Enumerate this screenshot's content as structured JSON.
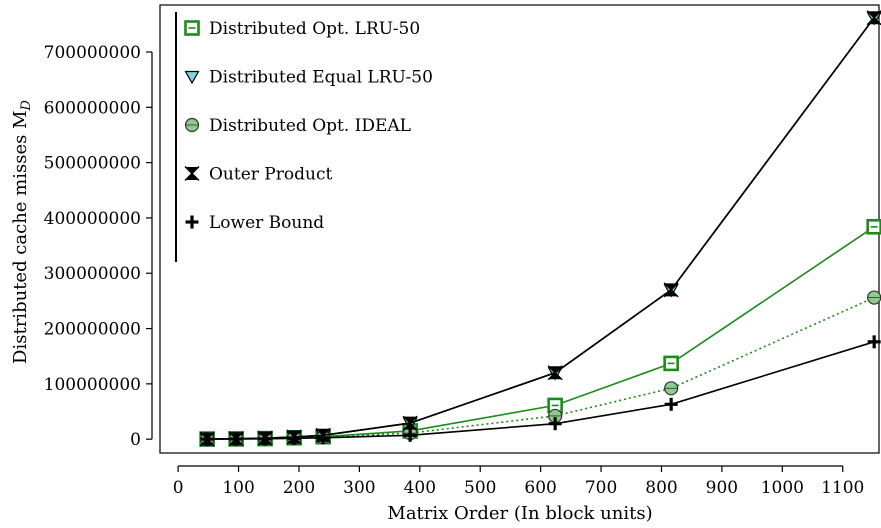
{
  "chart_data": {
    "type": "line",
    "xlabel": "Matrix Order (In block units)",
    "ylabel": "Distributed cache misses M",
    "ylabel_subscript": "D",
    "xlim": [
      -30,
      1160
    ],
    "ylim": [
      -25000000,
      785000000
    ],
    "xticks": [
      0,
      100,
      200,
      300,
      400,
      500,
      600,
      700,
      800,
      900,
      1000,
      1100
    ],
    "yticks": [
      0,
      100000000,
      200000000,
      300000000,
      400000000,
      500000000,
      600000000,
      700000000
    ],
    "x": [
      48,
      96,
      144,
      192,
      240,
      384,
      624,
      816,
      1152
    ],
    "legend_position": "top-left",
    "series": [
      {
        "name": "Distributed Opt. LRU-50",
        "color": "#1a8c1a",
        "marker": "square",
        "dash": "solid",
        "values": [
          200000,
          500000,
          1000000,
          2500000,
          4500000,
          15000000,
          61000000,
          137000000,
          384000000
        ]
      },
      {
        "name": "Distributed Equal LRU-50",
        "color": "#000000",
        "marker": "triangle-down",
        "dash": "solid",
        "values": [
          300000,
          800000,
          1800000,
          4000000,
          7000000,
          29000000,
          120000000,
          270000000,
          762000000
        ]
      },
      {
        "name": "Distributed Opt. IDEAL",
        "color": "#1a8c1a",
        "marker": "circle",
        "dash": "dotted",
        "values": [
          150000,
          400000,
          900000,
          2000000,
          3500000,
          11000000,
          42000000,
          92000000,
          256000000
        ]
      },
      {
        "name": "Outer Product",
        "color": "#000000",
        "marker": "bowtie",
        "dash": "solid",
        "values": [
          300000,
          800000,
          1800000,
          4000000,
          7000000,
          29000000,
          120000000,
          270000000,
          762000000
        ]
      },
      {
        "name": "Lower Bound",
        "color": "#000000",
        "marker": "plus",
        "dash": "solid",
        "values": [
          100000,
          300000,
          600000,
          1500000,
          2500000,
          7000000,
          28000000,
          63000000,
          176000000
        ]
      }
    ]
  }
}
